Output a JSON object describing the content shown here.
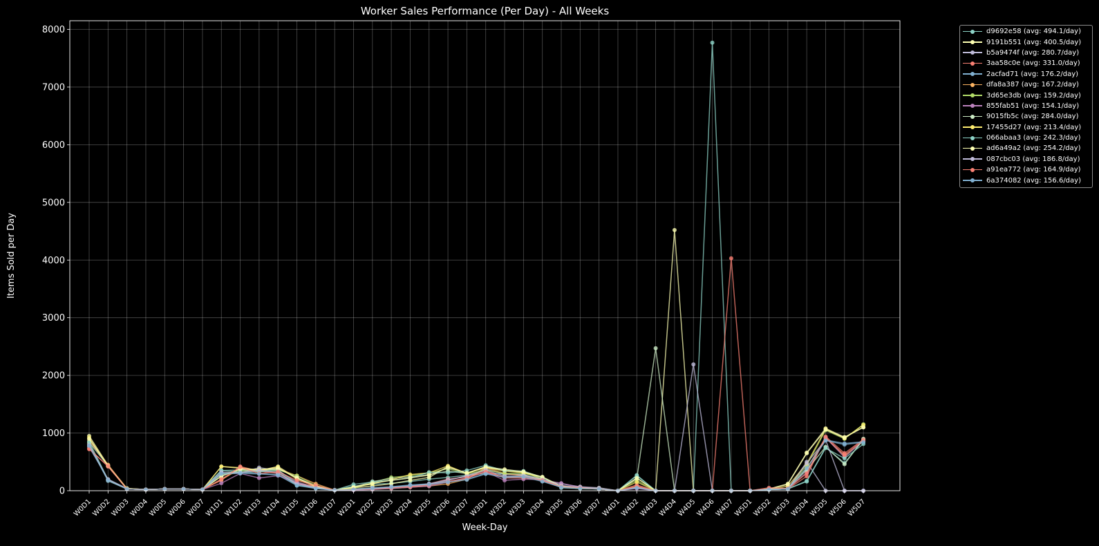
{
  "chart_data": {
    "type": "line",
    "title": "Worker Sales Performance (Per Day) - All Weeks",
    "xlabel": "Week-Day",
    "ylabel": "Items Sold per Day",
    "ylim": [
      0,
      8150
    ],
    "yticks": [
      0,
      1000,
      2000,
      3000,
      4000,
      5000,
      6000,
      7000,
      8000
    ],
    "grid": true,
    "legend_position": "outside-top-right",
    "categories": [
      "W0D1",
      "W0D2",
      "W0D3",
      "W0D4",
      "W0D5",
      "W0D6",
      "W0D7",
      "W1D1",
      "W1D2",
      "W1D3",
      "W1D4",
      "W1D5",
      "W1D6",
      "W1D7",
      "W2D1",
      "W2D2",
      "W2D3",
      "W2D4",
      "W2D5",
      "W2D6",
      "W2D7",
      "W3D1",
      "W3D2",
      "W3D3",
      "W3D4",
      "W3D5",
      "W3D6",
      "W3D7",
      "W4D1",
      "W4D2",
      "W4D3",
      "W4D4",
      "W4D5",
      "W4D6",
      "W4D7",
      "W5D1",
      "W5D2",
      "W5D3",
      "W5D4",
      "W5D5",
      "W5D6",
      "W5D7"
    ],
    "series": [
      {
        "name": "d9692e58 (avg: 494.1/day)",
        "color": "#8dd3c7",
        "values": [
          780,
          190,
          30,
          20,
          30,
          30,
          20,
          350,
          360,
          330,
          360,
          120,
          60,
          10,
          80,
          110,
          130,
          160,
          200,
          230,
          270,
          300,
          290,
          280,
          200,
          50,
          40,
          30,
          0,
          270,
          0,
          0,
          0,
          7770,
          0,
          0,
          20,
          30,
          170,
          750,
          480,
          880
        ]
      },
      {
        "name": "9191b551 (avg: 400.5/day)",
        "color": "#feffb3",
        "values": [
          950,
          440,
          30,
          20,
          30,
          30,
          20,
          420,
          390,
          350,
          420,
          220,
          80,
          10,
          50,
          80,
          120,
          180,
          230,
          420,
          300,
          420,
          350,
          320,
          200,
          60,
          40,
          40,
          0,
          220,
          0,
          4520,
          0,
          0,
          0,
          0,
          30,
          120,
          660,
          1080,
          930,
          1100
        ]
      },
      {
        "name": "b5a9474f (avg: 280.7/day)",
        "color": "#bfbbd9",
        "values": [
          760,
          200,
          40,
          20,
          30,
          30,
          20,
          300,
          310,
          400,
          350,
          150,
          60,
          10,
          20,
          30,
          60,
          80,
          100,
          180,
          260,
          380,
          280,
          280,
          180,
          120,
          70,
          50,
          0,
          50,
          0,
          0,
          2190,
          0,
          0,
          0,
          20,
          30,
          500,
          0,
          0,
          0
        ]
      },
      {
        "name": "3aa58c0e (avg: 331.0/day)",
        "color": "#fa8174",
        "values": [
          730,
          420,
          30,
          20,
          30,
          30,
          20,
          180,
          420,
          340,
          300,
          120,
          80,
          10,
          30,
          40,
          60,
          80,
          120,
          200,
          240,
          350,
          220,
          220,
          180,
          80,
          50,
          40,
          0,
          100,
          0,
          0,
          0,
          0,
          4030,
          0,
          20,
          30,
          250,
          940,
          650,
          890
        ]
      },
      {
        "name": "2acfad71 (avg: 176.2/day)",
        "color": "#81b1d2",
        "values": [
          800,
          170,
          30,
          20,
          30,
          30,
          20,
          300,
          320,
          300,
          280,
          100,
          40,
          10,
          30,
          50,
          70,
          100,
          120,
          160,
          200,
          300,
          240,
          250,
          170,
          60,
          40,
          30,
          0,
          60,
          0,
          0,
          0,
          0,
          0,
          0,
          20,
          30,
          400,
          880,
          820,
          850
        ]
      },
      {
        "name": "dfa8a387 (avg: 167.2/day)",
        "color": "#fdb462",
        "values": [
          870,
          450,
          40,
          20,
          30,
          30,
          20,
          190,
          380,
          350,
          380,
          260,
          120,
          10,
          20,
          30,
          40,
          60,
          80,
          120,
          200,
          400,
          300,
          260,
          190,
          70,
          50,
          30,
          0,
          70,
          0,
          0,
          0,
          0,
          0,
          0,
          30,
          40,
          380,
          920,
          600,
          860
        ]
      },
      {
        "name": "3d65e3db (avg: 159.2/day)",
        "color": "#b3de69",
        "values": [
          820,
          180,
          30,
          20,
          30,
          30,
          20,
          280,
          340,
          370,
          360,
          260,
          90,
          10,
          40,
          140,
          230,
          260,
          310,
          380,
          290,
          360,
          300,
          300,
          230,
          80,
          40,
          30,
          0,
          180,
          0,
          0,
          0,
          0,
          0,
          0,
          20,
          30,
          440,
          1050,
          900,
          1150
        ]
      },
      {
        "name": "855fab51 (avg: 154.1/day)",
        "color": "#bc82bd",
        "values": [
          800,
          190,
          30,
          20,
          30,
          30,
          20,
          130,
          300,
          220,
          260,
          140,
          50,
          10,
          10,
          20,
          40,
          60,
          80,
          150,
          220,
          330,
          180,
          200,
          190,
          130,
          60,
          40,
          0,
          40,
          0,
          0,
          0,
          0,
          0,
          0,
          20,
          30,
          320,
          920,
          580,
          870
        ]
      },
      {
        "name": "9015fb5c (avg: 284.0/day)",
        "color": "#ccebc4",
        "values": [
          840,
          430,
          40,
          20,
          30,
          30,
          20,
          250,
          370,
          340,
          380,
          230,
          70,
          10,
          60,
          160,
          210,
          240,
          280,
          340,
          300,
          410,
          350,
          330,
          230,
          70,
          50,
          30,
          0,
          210,
          2470,
          0,
          0,
          0,
          0,
          0,
          20,
          40,
          360,
          760,
          460,
          900
        ]
      },
      {
        "name": "17455d27 (avg: 213.4/day)",
        "color": "#ffed6f",
        "values": [
          920,
          430,
          40,
          20,
          30,
          30,
          20,
          420,
          400,
          350,
          410,
          200,
          70,
          10,
          60,
          120,
          190,
          280,
          310,
          430,
          300,
          400,
          340,
          310,
          230,
          70,
          50,
          30,
          0,
          150,
          0,
          0,
          0,
          0,
          0,
          0,
          20,
          80,
          470,
          1070,
          910,
          1140
        ]
      },
      {
        "name": "066abaa3 (avg: 242.3/day)",
        "color": "#8dd3c7",
        "values": [
          850,
          190,
          30,
          20,
          30,
          30,
          20,
          350,
          320,
          330,
          340,
          90,
          60,
          10,
          110,
          150,
          180,
          220,
          320,
          310,
          350,
          440,
          350,
          340,
          230,
          70,
          50,
          40,
          0,
          260,
          0,
          0,
          0,
          0,
          0,
          0,
          20,
          30,
          160,
          740,
          560,
          810
        ]
      },
      {
        "name": "ad6a49a2 (avg: 254.2/day)",
        "color": "#feffb3",
        "values": [
          900,
          430,
          30,
          20,
          30,
          30,
          20,
          250,
          380,
          370,
          390,
          220,
          80,
          10,
          60,
          130,
          180,
          220,
          270,
          400,
          310,
          410,
          370,
          330,
          240,
          80,
          50,
          40,
          0,
          220,
          0,
          0,
          0,
          0,
          0,
          0,
          30,
          110,
          650,
          1060,
          920,
          1100
        ]
      },
      {
        "name": "087cbc03 (avg: 186.8/day)",
        "color": "#bfbbd9",
        "values": [
          790,
          190,
          30,
          20,
          30,
          30,
          20,
          320,
          310,
          360,
          310,
          120,
          50,
          10,
          20,
          40,
          60,
          80,
          120,
          190,
          250,
          360,
          250,
          260,
          190,
          90,
          60,
          40,
          0,
          60,
          0,
          0,
          0,
          0,
          0,
          0,
          20,
          30,
          480,
          880,
          0,
          0
        ]
      },
      {
        "name": "a91ea772 (avg: 164.9/day)",
        "color": "#fa8174",
        "values": [
          720,
          430,
          30,
          20,
          30,
          30,
          20,
          200,
          410,
          300,
          330,
          180,
          90,
          10,
          20,
          30,
          50,
          70,
          100,
          160,
          220,
          330,
          230,
          230,
          180,
          70,
          50,
          30,
          0,
          80,
          0,
          0,
          0,
          0,
          0,
          0,
          50,
          40,
          300,
          920,
          620,
          880
        ]
      },
      {
        "name": "6a374082 (avg: 156.6/day)",
        "color": "#81b1d2",
        "values": [
          780,
          180,
          30,
          20,
          30,
          30,
          20,
          290,
          300,
          290,
          270,
          90,
          40,
          10,
          20,
          40,
          60,
          90,
          110,
          150,
          190,
          290,
          230,
          240,
          160,
          60,
          40,
          30,
          0,
          50,
          0,
          0,
          0,
          0,
          0,
          0,
          20,
          30,
          390,
          870,
          800,
          840
        ]
      }
    ]
  }
}
